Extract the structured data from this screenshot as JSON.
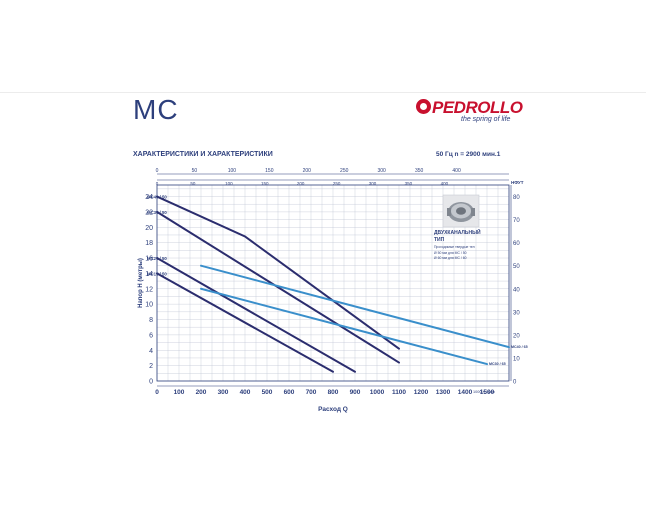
{
  "header": {
    "title": "MC",
    "brand": "PEDROLLO",
    "brand_tagline": "the spring of life",
    "subtitle": "ХАРАКТЕРИСТИКИ И ХАРАКТЕРИСТИКИ",
    "freq": "50 Гц     n = 2900 мин.1"
  },
  "inset": {
    "title_line1": "ДВУХКАНАЛЬНЫЙ",
    "title_line2": "ТИП",
    "line1": "Проходимые твердые тел",
    "line2": "Ø 50 мм для МС / 50",
    "line3": "Ø 60 мм для МС / 60"
  },
  "colors": {
    "navy": "#2b2d6e",
    "blue": "#3a8fcb",
    "text": "#2d3f7c",
    "grid": "#b9bfd0"
  },
  "chart_data": {
    "type": "line",
    "xlabel": "Расход Q",
    "ylabel": "Напор H (метры)",
    "x_unit_label": "1000 л / мин",
    "y2_unit_label": "НФУТ",
    "x_ticks": [
      0,
      100,
      200,
      300,
      400,
      500,
      600,
      700,
      800,
      900,
      1000,
      1100,
      1200,
      1300,
      1400,
      1500
    ],
    "x_top_ticks": [
      0,
      50,
      100,
      150,
      200,
      250,
      300,
      350,
      400
    ],
    "x_top2_ticks": [
      0,
      50,
      100,
      150,
      200,
      250,
      300,
      350,
      400
    ],
    "y_ticks": [
      0,
      2,
      4,
      6,
      8,
      10,
      12,
      14,
      16,
      18,
      20,
      22,
      24
    ],
    "y2_ticks": [
      0,
      10,
      20,
      30,
      40,
      50,
      60,
      70,
      80
    ],
    "xlim": [
      0,
      1600
    ],
    "ylim": [
      0,
      25.5
    ],
    "grid": true,
    "series": [
      {
        "name": "MC40 / 50",
        "color": "navy",
        "x": [
          0,
          400,
          1100
        ],
        "y": [
          24,
          18.8,
          4.2
        ]
      },
      {
        "name": "MC30 / 50",
        "color": "navy",
        "x": [
          0,
          1100
        ],
        "y": [
          22,
          2.4
        ]
      },
      {
        "name": "MC20 / 50",
        "color": "navy",
        "x": [
          0,
          900
        ],
        "y": [
          16,
          1.2
        ]
      },
      {
        "name": "MC15 / 50",
        "color": "navy",
        "x": [
          0,
          800
        ],
        "y": [
          14,
          1.2
        ]
      },
      {
        "name": "MC40 / 65",
        "color": "blue",
        "x": [
          200,
          1600
        ],
        "y": [
          15,
          4.4
        ]
      },
      {
        "name": "MC30 / 65",
        "color": "blue",
        "x": [
          200,
          1500
        ],
        "y": [
          12,
          2.2
        ]
      }
    ]
  }
}
